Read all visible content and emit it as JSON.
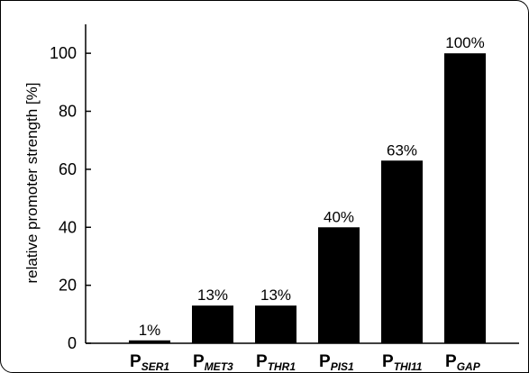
{
  "chart_data": {
    "type": "bar",
    "categories": [
      {
        "main": "P",
        "sub": "SER1"
      },
      {
        "main": "P",
        "sub": "MET3"
      },
      {
        "main": "P",
        "sub": "THR1"
      },
      {
        "main": "P",
        "sub": "PIS1"
      },
      {
        "main": "P",
        "sub": "THI11"
      },
      {
        "main": "P",
        "sub": "GAP"
      }
    ],
    "values": [
      1,
      13,
      13,
      40,
      63,
      100
    ],
    "data_labels": [
      "1%",
      "13%",
      "13%",
      "40%",
      "63%",
      "100%"
    ],
    "title": "",
    "xlabel": "",
    "ylabel": "relative promoter strength [%]",
    "ylim": [
      0,
      110
    ],
    "yticks": [
      0,
      20,
      40,
      60,
      80,
      100
    ],
    "grid": false,
    "bar_color": "#000000"
  }
}
